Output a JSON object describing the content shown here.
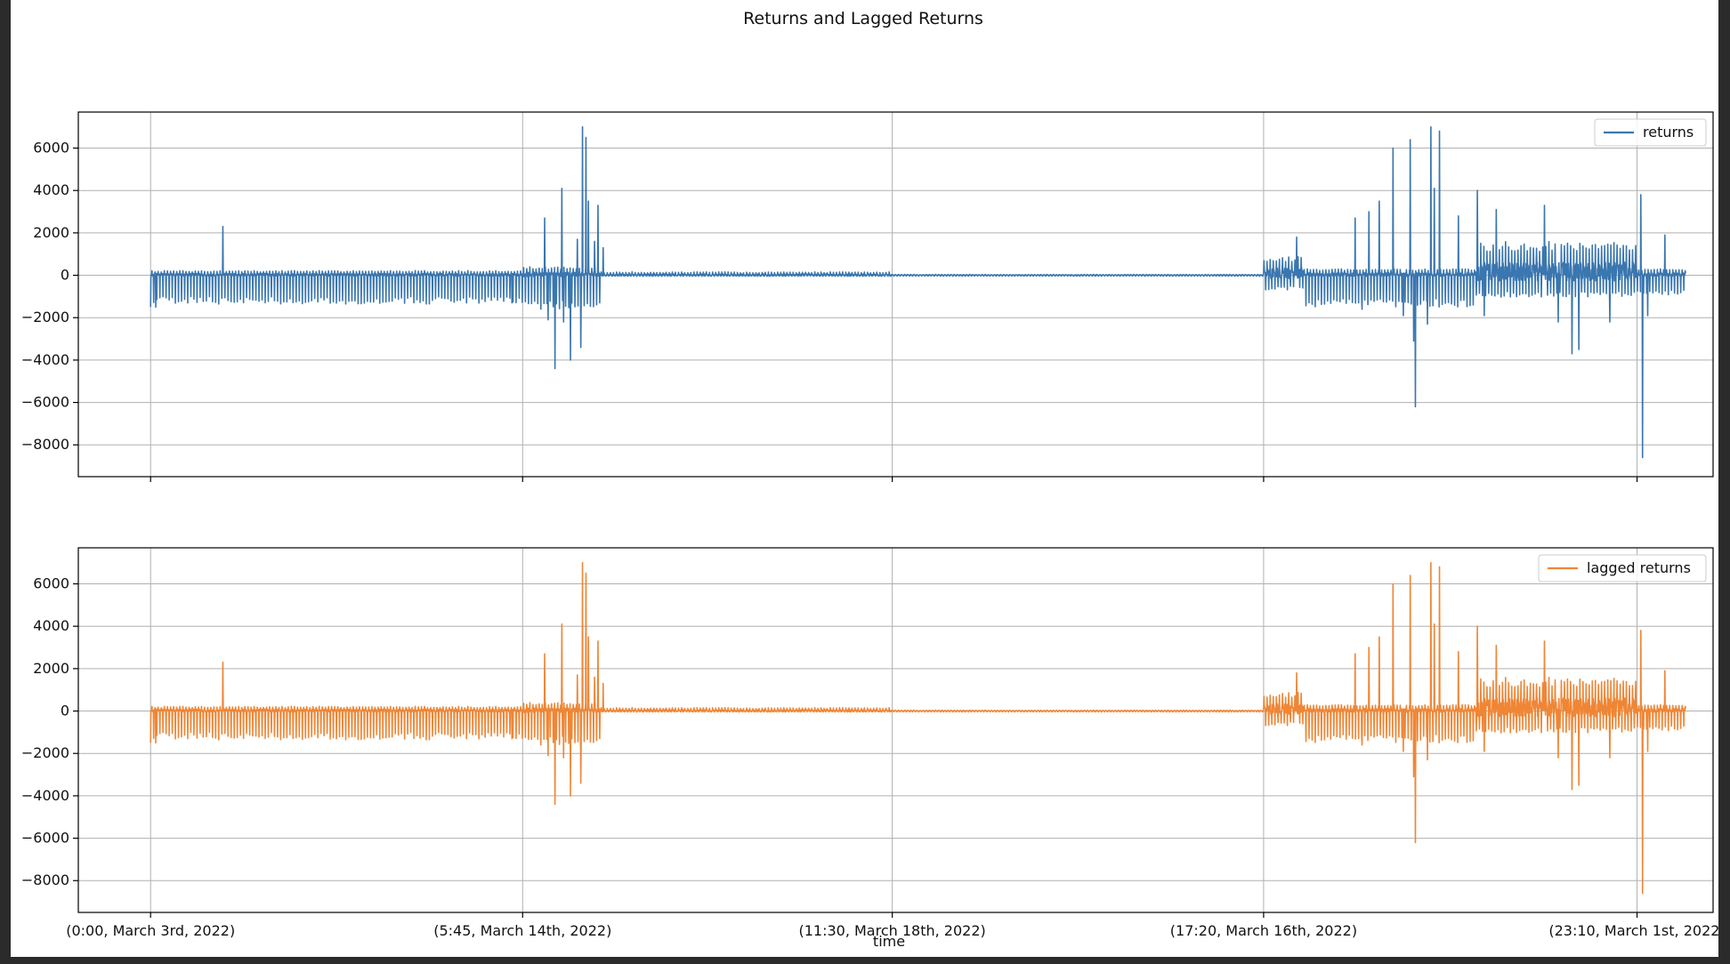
{
  "figure": {
    "title": "Returns and Lagged Returns",
    "xlabel": "time"
  },
  "colors": {
    "returns": "#3a76af",
    "lagged_returns": "#ef8636",
    "grid": "#b0b0b0",
    "axes": "#000000"
  },
  "chart_data": [
    {
      "type": "line",
      "title": "",
      "xlabel": "",
      "ylabel": "",
      "legend_position": "top-right",
      "grid": true,
      "ylim": [
        -9500,
        7700
      ],
      "yticks": [
        6000,
        4000,
        2000,
        0,
        -2000,
        -4000,
        -6000,
        -8000
      ],
      "ytick_labels": [
        "6000",
        "4000",
        "2000",
        "0",
        "−2000",
        "−4000",
        "−6000",
        "−8000"
      ],
      "xlim": [
        -210,
        4540
      ],
      "xticks": [
        0,
        1081,
        2155,
        3234,
        4319
      ],
      "xtick_labels": [],
      "series": [
        {
          "name": "returns",
          "color": "#3a76af",
          "regimes": [
            [
              0,
              1080,
              220,
              -1180
            ],
            [
              1080,
              1305,
              400,
              -1400
            ],
            [
              1305,
              2155,
              160,
              -40
            ],
            [
              2155,
              3234,
              40,
              -40
            ],
            [
              3234,
              3350,
              900,
              -600
            ],
            [
              3350,
              3850,
              300,
              -1300
            ],
            [
              3850,
              4319,
              1600,
              -900
            ],
            [
              4319,
              4460,
              300,
              -800
            ]
          ],
          "spikes": [
            [
              0,
              -1500
            ],
            [
              15,
              -1500
            ],
            [
              210,
              2300
            ],
            [
              1050,
              -1300
            ],
            [
              1145,
              2700
            ],
            [
              1155,
              -2100
            ],
            [
              1175,
              -4400
            ],
            [
              1195,
              4100
            ],
            [
              1200,
              -2200
            ],
            [
              1220,
              -4000
            ],
            [
              1240,
              1700
            ],
            [
              1250,
              -3400
            ],
            [
              1255,
              7000
            ],
            [
              1265,
              6500
            ],
            [
              1272,
              3500
            ],
            [
              1290,
              1600
            ],
            [
              1300,
              3300
            ],
            [
              1305,
              -1300
            ],
            [
              1315,
              1300
            ],
            [
              3330,
              1800
            ],
            [
              3500,
              2700
            ],
            [
              3520,
              -1600
            ],
            [
              3540,
              3000
            ],
            [
              3570,
              3500
            ],
            [
              3610,
              6000
            ],
            [
              3640,
              -1900
            ],
            [
              3660,
              6400
            ],
            [
              3670,
              -3100
            ],
            [
              3675,
              -6200
            ],
            [
              3710,
              -2300
            ],
            [
              3720,
              7000
            ],
            [
              3730,
              4100
            ],
            [
              3745,
              6800
            ],
            [
              3800,
              2800
            ],
            [
              3855,
              4000
            ],
            [
              3875,
              -1900
            ],
            [
              3910,
              3100
            ],
            [
              4050,
              3300
            ],
            [
              4090,
              -2200
            ],
            [
              4130,
              -3700
            ],
            [
              4150,
              -3500
            ],
            [
              4240,
              -2200
            ],
            [
              4330,
              3800
            ],
            [
              4335,
              -8600
            ],
            [
              4350,
              -1900
            ],
            [
              4400,
              1900
            ]
          ]
        }
      ]
    },
    {
      "type": "line",
      "title": "",
      "xlabel": "time",
      "ylabel": "",
      "legend_position": "top-right",
      "grid": true,
      "ylim": [
        -9500,
        7700
      ],
      "yticks": [
        6000,
        4000,
        2000,
        0,
        -2000,
        -4000,
        -6000,
        -8000
      ],
      "ytick_labels": [
        "6000",
        "4000",
        "2000",
        "0",
        "−2000",
        "−4000",
        "−6000",
        "−8000"
      ],
      "xlim": [
        -210,
        4540
      ],
      "xticks": [
        0,
        1081,
        2155,
        3234,
        4319
      ],
      "xtick_labels": [
        "(0:00, March 3rd, 2022)",
        "(5:45, March 14th, 2022)",
        "(11:30, March 18th, 2022)",
        "(17:20, March 16th, 2022)",
        "(23:10, March 1st, 2022)"
      ],
      "series": [
        {
          "name": "lagged returns",
          "color": "#ef8636",
          "regimes": [
            [
              0,
              1080,
              220,
              -1180
            ],
            [
              1080,
              1305,
              400,
              -1400
            ],
            [
              1305,
              2155,
              160,
              -40
            ],
            [
              2155,
              3234,
              40,
              -40
            ],
            [
              3234,
              3350,
              900,
              -600
            ],
            [
              3350,
              3850,
              300,
              -1300
            ],
            [
              3850,
              4319,
              1600,
              -900
            ],
            [
              4319,
              4460,
              300,
              -800
            ]
          ],
          "spikes": [
            [
              0,
              -1500
            ],
            [
              15,
              -1500
            ],
            [
              210,
              2300
            ],
            [
              1050,
              -1300
            ],
            [
              1145,
              2700
            ],
            [
              1155,
              -2100
            ],
            [
              1175,
              -4400
            ],
            [
              1195,
              4100
            ],
            [
              1200,
              -2200
            ],
            [
              1220,
              -4000
            ],
            [
              1240,
              1700
            ],
            [
              1250,
              -3400
            ],
            [
              1255,
              7000
            ],
            [
              1265,
              6500
            ],
            [
              1272,
              3500
            ],
            [
              1290,
              1600
            ],
            [
              1300,
              3300
            ],
            [
              1305,
              -1300
            ],
            [
              1315,
              1300
            ],
            [
              3330,
              1800
            ],
            [
              3500,
              2700
            ],
            [
              3520,
              -1600
            ],
            [
              3540,
              3000
            ],
            [
              3570,
              3500
            ],
            [
              3610,
              6000
            ],
            [
              3640,
              -1900
            ],
            [
              3660,
              6400
            ],
            [
              3670,
              -3100
            ],
            [
              3675,
              -6200
            ],
            [
              3710,
              -2300
            ],
            [
              3720,
              7000
            ],
            [
              3730,
              4100
            ],
            [
              3745,
              6800
            ],
            [
              3800,
              2800
            ],
            [
              3855,
              4000
            ],
            [
              3875,
              -1900
            ],
            [
              3910,
              3100
            ],
            [
              4050,
              3300
            ],
            [
              4090,
              -2200
            ],
            [
              4130,
              -3700
            ],
            [
              4150,
              -3500
            ],
            [
              4240,
              -2200
            ],
            [
              4330,
              3800
            ],
            [
              4335,
              -8600
            ],
            [
              4350,
              -1900
            ],
            [
              4400,
              1900
            ]
          ]
        }
      ]
    }
  ]
}
